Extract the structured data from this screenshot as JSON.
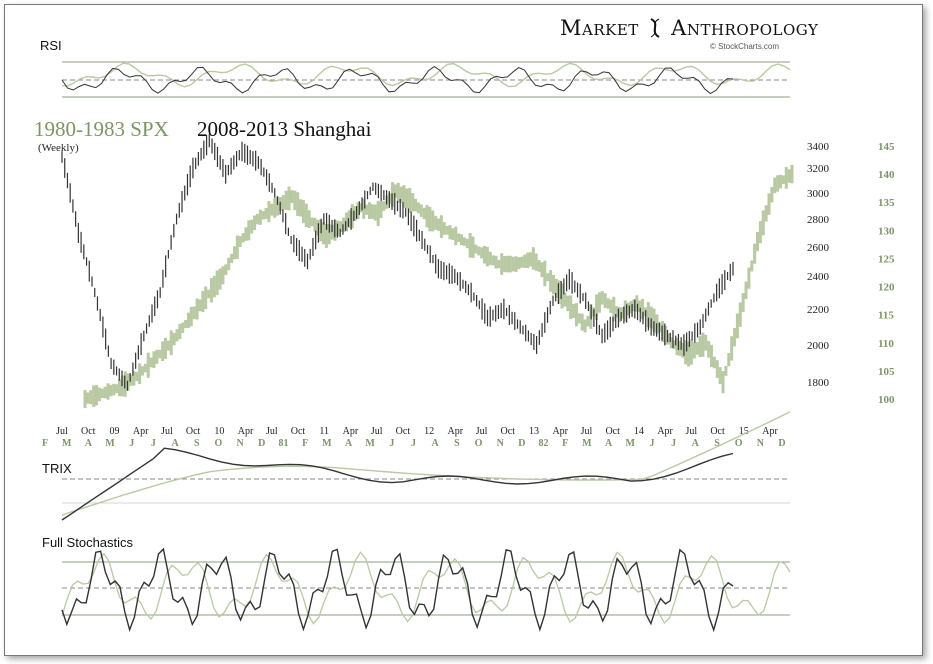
{
  "brand": {
    "word1": "Market",
    "word2": "Anthropology",
    "credit": "© StockCharts.com"
  },
  "panels": {
    "rsi": "RSI",
    "trix": "TRIX",
    "stoch": "Full Stochastics"
  },
  "chart_data": {
    "type": "line",
    "title": "1980-1983 SPX",
    "title2": "2008-2013 Shanghai",
    "subtitle": "(Weekly)",
    "y_left_ticks": [
      3400,
      3200,
      3000,
      2800,
      2600,
      2400,
      2200,
      2000,
      1800
    ],
    "y_right_ticks": [
      145,
      140,
      135,
      130,
      125,
      120,
      115,
      110,
      105,
      100
    ],
    "x_top_ticks": [
      "Jul",
      "Oct",
      "09",
      "Apr",
      "Jul",
      "Oct",
      "10",
      "Apr",
      "Jul",
      "Oct",
      "11",
      "Apr",
      "Jul",
      "Oct",
      "12",
      "Apr",
      "Jul",
      "Oct",
      "13",
      "Apr",
      "Jul",
      "Oct",
      "14",
      "Apr",
      "Jul",
      "Oct",
      "15",
      "Apr"
    ],
    "x_bottom_ticks": [
      "F",
      "M",
      "A",
      "M",
      "J",
      "J",
      "A",
      "S",
      "O",
      "N",
      "D",
      "81",
      "F",
      "M",
      "A",
      "M",
      "J",
      "J",
      "A",
      "S",
      "O",
      "N",
      "D",
      "82",
      "F",
      "M",
      "A",
      "M",
      "J",
      "J",
      "A",
      "S",
      "O",
      "N",
      "D"
    ],
    "colors": {
      "shanghai": "#333333",
      "spx": "#b9c9a3",
      "spx_text": "#7e9469"
    },
    "series": [
      {
        "name": "2008-2013 Shanghai",
        "values": [
          3300,
          2700,
          2300,
          1900,
          1780,
          2050,
          2300,
          2800,
          3200,
          3450,
          3150,
          3350,
          3250,
          3000,
          2650,
          2500,
          2800,
          2700,
          2850,
          3050,
          2950,
          2850,
          2650,
          2450,
          2400,
          2300,
          2150,
          2200,
          2100,
          2000,
          2250,
          2380,
          2250,
          2050,
          2150,
          2200,
          2100,
          2050,
          2000,
          2100,
          2300,
          2450
        ]
      },
      {
        "name": "1980-1983 SPX",
        "values": [
          100,
          101,
          102,
          104,
          107,
          110,
          114,
          118,
          122,
          128,
          132,
          134,
          136,
          132,
          129,
          131,
          134,
          133,
          137,
          135,
          132,
          130,
          128,
          126,
          124,
          124,
          125,
          121,
          117,
          113,
          118,
          115,
          117,
          114,
          110,
          108,
          110,
          103,
          115,
          128,
          138,
          140
        ]
      }
    ]
  }
}
